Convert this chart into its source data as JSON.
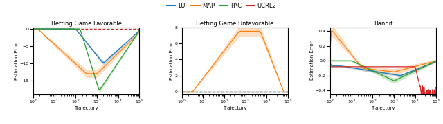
{
  "title1": "Betting Game Favorable",
  "title2": "Betting Game Unfavorable",
  "title3": "Bandit",
  "xlabel": "Trajectory",
  "ylabel": "Estimation Error",
  "legend_labels": [
    "LUI",
    "MAP",
    "PAC",
    "UCRL2"
  ],
  "colors": {
    "LUI": "#1f77b4",
    "MAP": "#ff7f0e",
    "PAC": "#2ca02c",
    "UCRL2": "#d62728"
  },
  "plot1_ylim": [
    -19,
    0.5
  ],
  "plot2_ylim": [
    -0.3,
    8
  ],
  "plot3_ylim": [
    -0.45,
    0.45
  ],
  "figsize": [
    6.4,
    1.8
  ],
  "dpi": 100
}
